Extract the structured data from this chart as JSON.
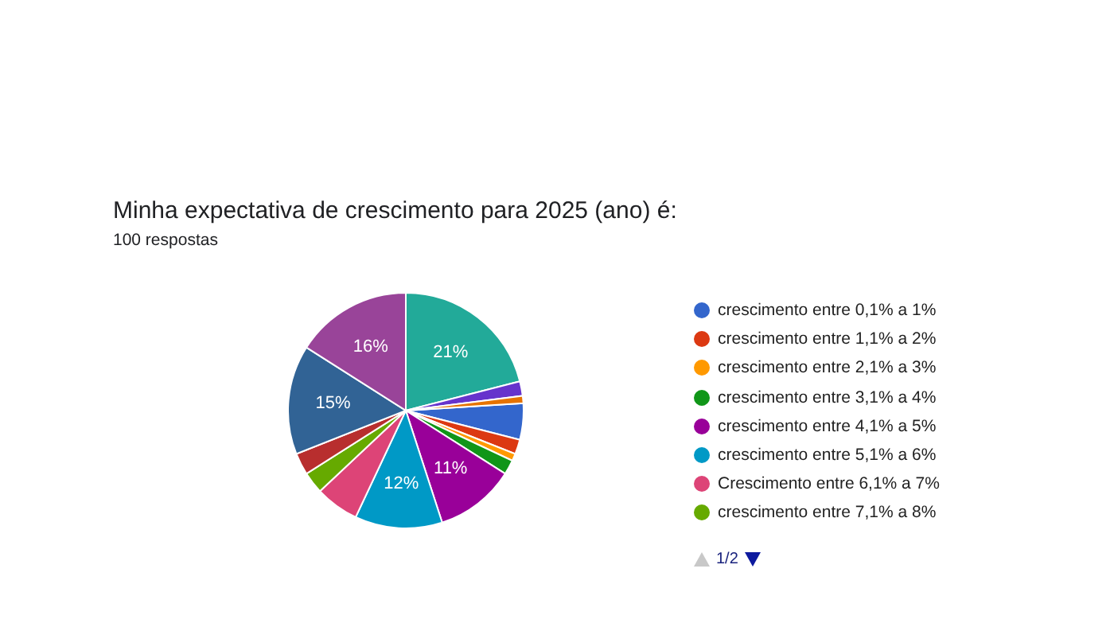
{
  "chart_data": {
    "type": "pie",
    "title": "Minha expectativa de crescimento para 2025 (ano) é:",
    "subtitle": "100 respostas",
    "categories": [
      "crescimento entre 0,1% a 1%",
      "crescimento entre 1,1% a 2%",
      "crescimento entre 2,1% a 3%",
      "crescimento entre 3,1% a 4%",
      "crescimento entre 4,1% a 5%",
      "crescimento entre 5,1% a 6%",
      "Crescimento entre 6,1% a 7%",
      "crescimento entre 7,1% a 8%",
      null,
      null,
      null,
      null,
      null,
      null
    ],
    "values": [
      5,
      2,
      1,
      2,
      11,
      12,
      6,
      3,
      3,
      15,
      16,
      21,
      2,
      1
    ],
    "colors": [
      "#3366cc",
      "#dc3912",
      "#ff9900",
      "#109618",
      "#990099",
      "#0099c6",
      "#dd4477",
      "#66aa00",
      "#b82e2e",
      "#316395",
      "#994499",
      "#22aa99",
      "#6633cc",
      "#e67300"
    ],
    "value_labels": [
      null,
      null,
      null,
      null,
      "11%",
      "12%",
      null,
      null,
      null,
      "15%",
      "16%",
      "21%",
      null,
      null
    ],
    "legend": "right",
    "annotations": [
      "1/2"
    ]
  }
}
